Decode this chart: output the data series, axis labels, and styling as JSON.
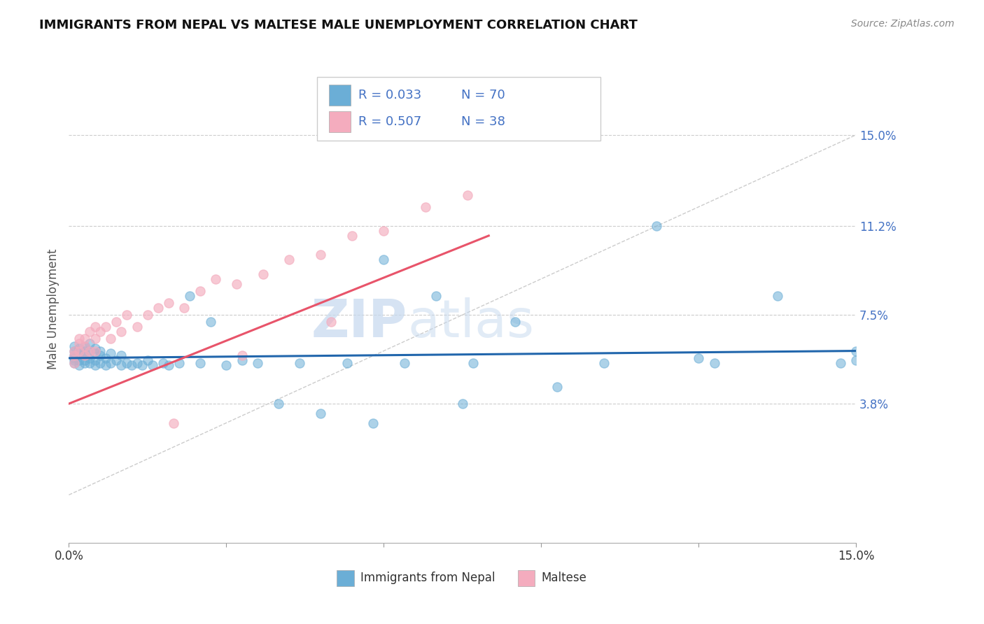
{
  "title": "IMMIGRANTS FROM NEPAL VS MALTESE MALE UNEMPLOYMENT CORRELATION CHART",
  "source": "Source: ZipAtlas.com",
  "ylabel": "Male Unemployment",
  "xlim": [
    0.0,
    0.15
  ],
  "ylim": [
    -0.02,
    0.175
  ],
  "ytick_vals": [
    0.038,
    0.075,
    0.112,
    0.15
  ],
  "ytick_labels": [
    "3.8%",
    "7.5%",
    "11.2%",
    "15.0%"
  ],
  "xtick_vals": [
    0.0,
    0.03,
    0.06,
    0.09,
    0.12,
    0.15
  ],
  "xtick_labels": [
    "0.0%",
    "",
    "",
    "",
    "",
    "15.0%"
  ],
  "blue_color": "#6BAED6",
  "pink_color": "#F4ACBE",
  "blue_line_color": "#2166AC",
  "pink_line_color": "#E8546A",
  "diag_color": "#CCCCCC",
  "grid_color": "#CCCCCC",
  "text_color": "#4472C4",
  "legend_label1": "Immigrants from Nepal",
  "legend_label2": "Maltese",
  "watermark": "ZIPatlas",
  "blue_scatter_x": [
    0.001,
    0.001,
    0.001,
    0.001,
    0.001,
    0.001,
    0.002,
    0.002,
    0.002,
    0.002,
    0.002,
    0.003,
    0.003,
    0.003,
    0.003,
    0.003,
    0.003,
    0.004,
    0.004,
    0.004,
    0.004,
    0.005,
    0.005,
    0.005,
    0.005,
    0.006,
    0.006,
    0.006,
    0.007,
    0.007,
    0.008,
    0.008,
    0.009,
    0.01,
    0.01,
    0.011,
    0.012,
    0.013,
    0.014,
    0.015,
    0.016,
    0.018,
    0.019,
    0.021,
    0.023,
    0.025,
    0.027,
    0.03,
    0.033,
    0.036,
    0.04,
    0.044,
    0.048,
    0.053,
    0.058,
    0.064,
    0.07,
    0.077,
    0.085,
    0.093,
    0.102,
    0.112,
    0.123,
    0.135,
    0.147,
    0.15,
    0.15,
    0.06,
    0.075,
    0.12
  ],
  "blue_scatter_y": [
    0.056,
    0.058,
    0.06,
    0.055,
    0.057,
    0.062,
    0.054,
    0.058,
    0.06,
    0.056,
    0.061,
    0.055,
    0.058,
    0.06,
    0.056,
    0.059,
    0.062,
    0.055,
    0.057,
    0.06,
    0.063,
    0.054,
    0.056,
    0.059,
    0.061,
    0.055,
    0.058,
    0.06,
    0.054,
    0.057,
    0.055,
    0.059,
    0.056,
    0.054,
    0.058,
    0.055,
    0.054,
    0.055,
    0.054,
    0.056,
    0.054,
    0.055,
    0.054,
    0.055,
    0.083,
    0.055,
    0.072,
    0.054,
    0.056,
    0.055,
    0.038,
    0.055,
    0.034,
    0.055,
    0.03,
    0.055,
    0.083,
    0.055,
    0.072,
    0.045,
    0.055,
    0.112,
    0.055,
    0.083,
    0.055,
    0.06,
    0.056,
    0.098,
    0.038,
    0.057
  ],
  "pink_scatter_x": [
    0.001,
    0.001,
    0.001,
    0.002,
    0.002,
    0.002,
    0.003,
    0.003,
    0.003,
    0.004,
    0.004,
    0.005,
    0.005,
    0.005,
    0.006,
    0.007,
    0.008,
    0.009,
    0.01,
    0.011,
    0.013,
    0.015,
    0.017,
    0.019,
    0.022,
    0.025,
    0.028,
    0.032,
    0.037,
    0.042,
    0.048,
    0.054,
    0.06,
    0.068,
    0.076,
    0.05,
    0.033,
    0.02
  ],
  "pink_scatter_y": [
    0.06,
    0.055,
    0.058,
    0.063,
    0.065,
    0.06,
    0.062,
    0.065,
    0.058,
    0.068,
    0.06,
    0.065,
    0.07,
    0.06,
    0.068,
    0.07,
    0.065,
    0.072,
    0.068,
    0.075,
    0.07,
    0.075,
    0.078,
    0.08,
    0.078,
    0.085,
    0.09,
    0.088,
    0.092,
    0.098,
    0.1,
    0.108,
    0.11,
    0.12,
    0.125,
    0.072,
    0.058,
    0.03
  ],
  "blue_trend_x": [
    0.0,
    0.15
  ],
  "blue_trend_y": [
    0.057,
    0.06
  ],
  "pink_trend_x": [
    0.0,
    0.08
  ],
  "pink_trend_y": [
    0.038,
    0.108
  ]
}
